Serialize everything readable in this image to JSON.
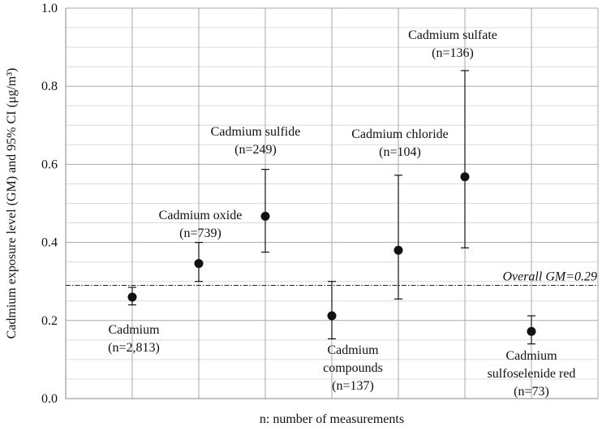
{
  "chart_data": {
    "type": "scatter",
    "subtype": "point-with-error-bars",
    "title": "",
    "xlabel": "n: number of measurements",
    "ylabel": "Cadmium exposure level (GM) and 95% CI (μg/m³)",
    "ylim": [
      0,
      1.0
    ],
    "yticks": [
      "0.0",
      "0.2",
      "0.4",
      "0.6",
      "0.8",
      "1.0"
    ],
    "grid": true,
    "points": [
      {
        "slot": 1,
        "name": "Cadmium",
        "n_label": "(n=2,813)",
        "gm": 0.26,
        "lower": 0.24,
        "upper": 0.285,
        "label_pos": "below"
      },
      {
        "slot": 2,
        "name": "Cadmium oxide",
        "n_label": "(n=739)",
        "gm": 0.346,
        "lower": 0.3,
        "upper": 0.4,
        "label_pos": "above"
      },
      {
        "slot": 3,
        "name": "Cadmium sulfide",
        "n_label": "(n=249)",
        "gm": 0.467,
        "lower": 0.375,
        "upper": 0.587,
        "label_pos": "above"
      },
      {
        "slot": 4,
        "name": "Cadmium compounds",
        "n_label": "(n=137)",
        "gm": 0.212,
        "lower": 0.153,
        "upper": 0.3,
        "label_pos": "below"
      },
      {
        "slot": 5,
        "name": "Cadmium chloride",
        "n_label": "(n=104)",
        "gm": 0.38,
        "lower": 0.255,
        "upper": 0.572,
        "label_pos": "above"
      },
      {
        "slot": 6,
        "name": "Cadmium sulfate",
        "n_label": "(n=136)",
        "gm": 0.568,
        "lower": 0.386,
        "upper": 0.84,
        "label_pos": "above"
      },
      {
        "slot": 7,
        "name": "Cadmium sulfoselenide red",
        "n_label": "(n=73)",
        "gm": 0.172,
        "lower": 0.14,
        "upper": 0.212,
        "label_pos": "below"
      }
    ],
    "reference_line": {
      "label": "Overall GM=0.29",
      "value": 0.29,
      "style": "dash-dot"
    }
  }
}
